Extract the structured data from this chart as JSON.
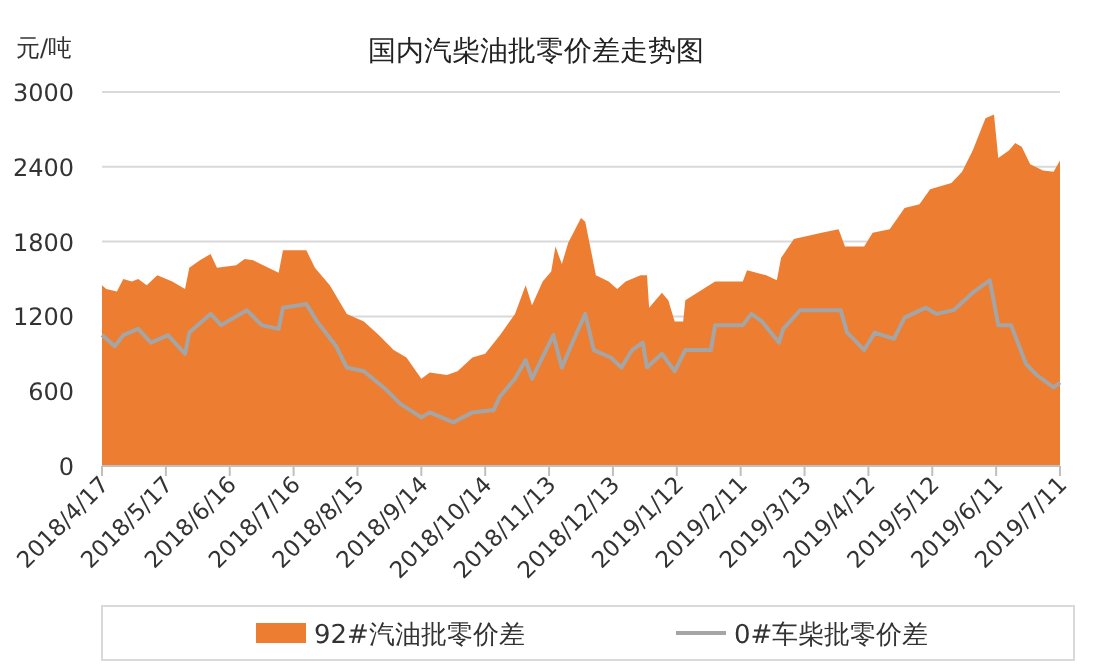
{
  "chart_data": {
    "type": "area",
    "title": "国内汽柴油批零价差走势图",
    "ylabel": "元/吨",
    "ylim": [
      0,
      3000
    ],
    "yticks": [
      0,
      600,
      1200,
      1800,
      2400,
      3000
    ],
    "xlim": [
      "2018-04-17",
      "2019-07-11"
    ],
    "xticks": [
      {
        "value": "2018-04-17",
        "label": "2018/4/17"
      },
      {
        "value": "2018-05-17",
        "label": "2018/5/17"
      },
      {
        "value": "2018-06-16",
        "label": "2018/6/16"
      },
      {
        "value": "2018-07-16",
        "label": "2018/7/16"
      },
      {
        "value": "2018-08-15",
        "label": "2018/8/15"
      },
      {
        "value": "2018-09-14",
        "label": "2018/9/14"
      },
      {
        "value": "2018-10-14",
        "label": "2018/10/14"
      },
      {
        "value": "2018-11-13",
        "label": "2018/11/13"
      },
      {
        "value": "2018-12-13",
        "label": "2018/12/13"
      },
      {
        "value": "2019-01-12",
        "label": "2019/1/12"
      },
      {
        "value": "2019-02-11",
        "label": "2019/2/11"
      },
      {
        "value": "2019-03-13",
        "label": "2019/3/13"
      },
      {
        "value": "2019-04-12",
        "label": "2019/4/12"
      },
      {
        "value": "2019-05-12",
        "label": "2019/5/12"
      },
      {
        "value": "2019-06-11",
        "label": "2019/6/11"
      },
      {
        "value": "2019-07-11",
        "label": "2019/7/11"
      }
    ],
    "grid": "y",
    "legend": "bottom",
    "series": [
      {
        "name": "92#汽油批零价差",
        "color": "#ed7d31",
        "x": [
          "2018-04-17",
          "2018-04-19",
          "2018-04-24",
          "2018-04-27",
          "2018-05-01",
          "2018-05-04",
          "2018-05-08",
          "2018-05-13",
          "2018-05-20",
          "2018-05-26",
          "2018-05-28",
          "2018-06-02",
          "2018-06-07",
          "2018-06-10",
          "2018-06-19",
          "2018-06-23",
          "2018-06-27",
          "2018-07-09",
          "2018-07-11",
          "2018-07-22",
          "2018-07-26",
          "2018-08-02",
          "2018-08-10",
          "2018-08-18",
          "2018-08-25",
          "2018-09-01",
          "2018-09-07",
          "2018-09-14",
          "2018-09-18",
          "2018-09-26",
          "2018-10-01",
          "2018-10-08",
          "2018-10-14",
          "2018-10-21",
          "2018-10-28",
          "2018-11-02",
          "2018-11-05",
          "2018-11-10",
          "2018-11-14",
          "2018-11-16",
          "2018-11-19",
          "2018-11-22",
          "2018-11-28",
          "2018-11-30",
          "2018-12-05",
          "2018-12-11",
          "2018-12-15",
          "2018-12-19",
          "2018-12-26",
          "2018-12-29",
          "2018-12-30",
          "2019-01-05",
          "2019-01-08",
          "2019-01-11",
          "2019-01-15",
          "2019-01-16",
          "2019-01-30",
          "2019-02-12",
          "2019-02-14",
          "2019-02-23",
          "2019-02-28",
          "2019-03-02",
          "2019-03-08",
          "2019-03-21",
          "2019-03-29",
          "2019-04-01",
          "2019-04-10",
          "2019-04-14",
          "2019-04-22",
          "2019-04-29",
          "2019-05-06",
          "2019-05-11",
          "2019-05-21",
          "2019-05-26",
          "2019-05-31",
          "2019-06-06",
          "2019-06-10",
          "2019-06-12",
          "2019-06-17",
          "2019-06-20",
          "2019-06-23",
          "2019-06-27",
          "2019-07-03",
          "2019-07-08",
          "2019-07-11"
        ],
        "values": [
          1450,
          1420,
          1400,
          1500,
          1480,
          1500,
          1450,
          1530,
          1480,
          1420,
          1590,
          1650,
          1700,
          1590,
          1610,
          1660,
          1650,
          1550,
          1730,
          1730,
          1590,
          1450,
          1220,
          1160,
          1050,
          930,
          870,
          700,
          750,
          730,
          760,
          870,
          900,
          1050,
          1220,
          1450,
          1290,
          1480,
          1560,
          1760,
          1620,
          1790,
          1990,
          1960,
          1530,
          1480,
          1420,
          1480,
          1530,
          1530,
          1270,
          1390,
          1330,
          1160,
          1160,
          1330,
          1480,
          1480,
          1570,
          1530,
          1490,
          1670,
          1820,
          1870,
          1900,
          1760,
          1760,
          1870,
          1900,
          2070,
          2100,
          2220,
          2270,
          2360,
          2530,
          2790,
          2820,
          2470,
          2530,
          2590,
          2560,
          2420,
          2370,
          2360,
          2450
        ]
      },
      {
        "name": "0#车柴批零价差",
        "type": "line",
        "color": "#a5a5a5",
        "x": [
          "2018-04-17",
          "2018-04-23",
          "2018-04-27",
          "2018-05-04",
          "2018-05-10",
          "2018-05-18",
          "2018-05-26",
          "2018-05-28",
          "2018-06-07",
          "2018-06-12",
          "2018-06-24",
          "2018-07-01",
          "2018-07-09",
          "2018-07-11",
          "2018-07-22",
          "2018-07-27",
          "2018-08-05",
          "2018-08-10",
          "2018-08-18",
          "2018-08-28",
          "2018-09-04",
          "2018-09-14",
          "2018-09-18",
          "2018-09-29",
          "2018-10-08",
          "2018-10-18",
          "2018-10-21",
          "2018-10-28",
          "2018-11-02",
          "2018-11-05",
          "2018-11-15",
          "2018-11-19",
          "2018-11-24",
          "2018-11-30",
          "2018-12-04",
          "2018-12-12",
          "2018-12-17",
          "2018-12-22",
          "2018-12-27",
          "2018-12-29",
          "2019-01-05",
          "2019-01-11",
          "2019-01-16",
          "2019-01-28",
          "2019-01-30",
          "2019-02-12",
          "2019-02-16",
          "2019-02-21",
          "2019-03-01",
          "2019-03-03",
          "2019-03-11",
          "2019-03-30",
          "2019-04-02",
          "2019-04-05",
          "2019-04-10",
          "2019-04-15",
          "2019-04-24",
          "2019-04-29",
          "2019-05-09",
          "2019-05-14",
          "2019-05-22",
          "2019-05-31",
          "2019-06-08",
          "2019-06-12",
          "2019-06-18",
          "2019-06-25",
          "2019-06-30",
          "2019-07-08",
          "2019-07-11"
        ],
        "values": [
          1050,
          960,
          1050,
          1100,
          990,
          1050,
          900,
          1070,
          1220,
          1130,
          1250,
          1130,
          1100,
          1270,
          1300,
          1160,
          960,
          790,
          760,
          620,
          500,
          390,
          430,
          350,
          430,
          450,
          560,
          700,
          850,
          700,
          1050,
          790,
          990,
          1220,
          930,
          870,
          790,
          930,
          990,
          790,
          900,
          760,
          930,
          930,
          1130,
          1130,
          1220,
          1160,
          990,
          1100,
          1250,
          1250,
          1070,
          1020,
          930,
          1070,
          1020,
          1190,
          1270,
          1220,
          1250,
          1390,
          1490,
          1130,
          1130,
          820,
          730,
          630,
          670
        ]
      }
    ]
  }
}
